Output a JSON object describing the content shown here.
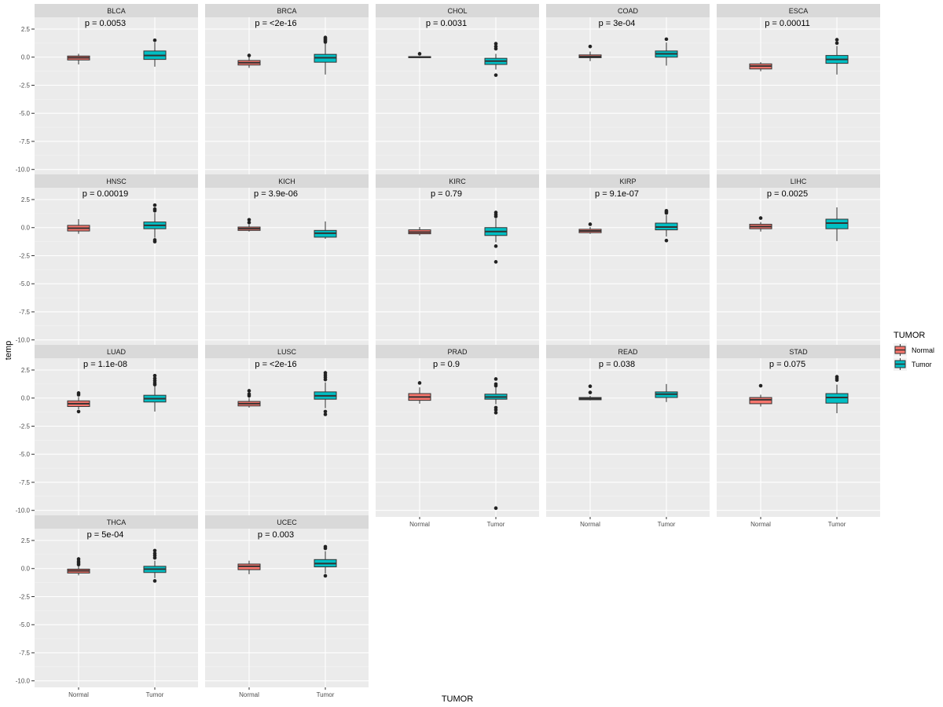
{
  "chart_data": {
    "type": "boxplot",
    "facet_layout": {
      "columns": 5,
      "rows": 4
    },
    "xlabel": "TUMOR",
    "ylabel": "temp",
    "ylim": [
      -10.3,
      3.2
    ],
    "yticks": [
      2.5,
      0.0,
      -2.5,
      -5.0,
      -7.5,
      -10.0
    ],
    "ytick_labels": [
      "2.5",
      "0.0",
      "-2.5",
      "-5.0",
      "-7.5",
      "-10.0"
    ],
    "categories": [
      "Normal",
      "Tumor"
    ],
    "legend": {
      "title": "TUMOR",
      "entries": [
        {
          "label": "Normal",
          "color": "#F8766D"
        },
        {
          "label": "Tumor",
          "color": "#00BFC4"
        }
      ]
    },
    "panels": [
      {
        "name": "BLCA",
        "p": "p = 0.0053",
        "normal": {
          "q1": -0.25,
          "median": -0.05,
          "q3": 0.1,
          "lo": -0.65,
          "hi": 0.3,
          "outliers": []
        },
        "tumor": {
          "q1": -0.2,
          "median": 0.15,
          "q3": 0.55,
          "lo": -0.85,
          "hi": 1.3,
          "outliers": [
            1.5
          ]
        }
      },
      {
        "name": "BRCA",
        "p": "p = <2e-16",
        "normal": {
          "q1": -0.7,
          "median": -0.5,
          "q3": -0.3,
          "lo": -0.95,
          "hi": 0.0,
          "outliers": [
            0.15
          ]
        },
        "tumor": {
          "q1": -0.45,
          "median": -0.05,
          "q3": 0.25,
          "lo": -1.55,
          "hi": 1.2,
          "outliers": [
            1.35,
            1.45,
            1.55,
            1.65,
            1.75
          ]
        }
      },
      {
        "name": "CHOL",
        "p": "p = 0.0031",
        "normal": {
          "q1": -0.05,
          "median": 0.0,
          "q3": 0.05,
          "lo": -0.1,
          "hi": 0.1,
          "outliers": [
            0.3
          ]
        },
        "tumor": {
          "q1": -0.65,
          "median": -0.35,
          "q3": -0.1,
          "lo": -1.1,
          "hi": 0.3,
          "outliers": [
            0.75,
            0.95,
            1.2,
            -1.6
          ]
        }
      },
      {
        "name": "COAD",
        "p": "p = 3e-04",
        "normal": {
          "q1": -0.05,
          "median": 0.05,
          "q3": 0.2,
          "lo": -0.35,
          "hi": 0.5,
          "outliers": [
            0.95
          ]
        },
        "tumor": {
          "q1": 0.0,
          "median": 0.3,
          "q3": 0.55,
          "lo": -0.75,
          "hi": 1.3,
          "outliers": [
            1.6
          ]
        }
      },
      {
        "name": "ESCA",
        "p": "p = 0.00011",
        "normal": {
          "q1": -1.05,
          "median": -0.8,
          "q3": -0.6,
          "lo": -1.25,
          "hi": -0.45,
          "outliers": []
        },
        "tumor": {
          "q1": -0.55,
          "median": -0.2,
          "q3": 0.15,
          "lo": -1.55,
          "hi": 1.0,
          "outliers": [
            1.25,
            1.55
          ]
        }
      },
      {
        "name": "HNSC",
        "p": "p = 0.00019",
        "normal": {
          "q1": -0.3,
          "median": -0.05,
          "q3": 0.2,
          "lo": -0.55,
          "hi": 0.75,
          "outliers": []
        },
        "tumor": {
          "q1": -0.1,
          "median": 0.2,
          "q3": 0.5,
          "lo": -0.9,
          "hi": 1.3,
          "outliers": [
            1.5,
            1.65,
            2.0,
            -1.1,
            -1.25
          ]
        }
      },
      {
        "name": "KICH",
        "p": "p = 3.9e-06",
        "normal": {
          "q1": -0.25,
          "median": -0.1,
          "q3": 0.05,
          "lo": -0.35,
          "hi": 0.25,
          "outliers": [
            0.45,
            0.7
          ]
        },
        "tumor": {
          "q1": -0.85,
          "median": -0.5,
          "q3": -0.25,
          "lo": -1.0,
          "hi": 0.55,
          "outliers": []
        }
      },
      {
        "name": "KIRC",
        "p": "p = 0.79",
        "normal": {
          "q1": -0.55,
          "median": -0.4,
          "q3": -0.2,
          "lo": -0.7,
          "hi": 0.05,
          "outliers": []
        },
        "tumor": {
          "q1": -0.7,
          "median": -0.35,
          "q3": 0.0,
          "lo": -1.3,
          "hi": 0.8,
          "outliers": [
            1.0,
            1.15,
            1.35,
            -1.65,
            -3.05
          ]
        }
      },
      {
        "name": "KIRP",
        "p": "p = 9.1e-07",
        "normal": {
          "q1": -0.45,
          "median": -0.3,
          "q3": -0.15,
          "lo": -0.55,
          "hi": 0.05,
          "outliers": [
            0.3
          ]
        },
        "tumor": {
          "q1": -0.2,
          "median": 0.05,
          "q3": 0.4,
          "lo": -0.8,
          "hi": 1.1,
          "outliers": [
            1.3,
            1.4,
            1.5,
            -1.15
          ]
        }
      },
      {
        "name": "LIHC",
        "p": "p = 0.0025",
        "normal": {
          "q1": -0.1,
          "median": 0.1,
          "q3": 0.3,
          "lo": -0.35,
          "hi": 0.5,
          "outliers": [
            0.85
          ]
        },
        "tumor": {
          "q1": -0.1,
          "median": 0.4,
          "q3": 0.75,
          "lo": -1.2,
          "hi": 1.8,
          "outliers": []
        }
      },
      {
        "name": "LUAD",
        "p": "p = 1.1e-08",
        "normal": {
          "q1": -0.75,
          "median": -0.5,
          "q3": -0.25,
          "lo": -1.0,
          "hi": 0.1,
          "outliers": [
            0.3,
            0.45,
            -1.2
          ]
        },
        "tumor": {
          "q1": -0.35,
          "median": -0.05,
          "q3": 0.25,
          "lo": -1.2,
          "hi": 1.05,
          "outliers": [
            1.2,
            1.35,
            1.55,
            1.75,
            2.0
          ]
        }
      },
      {
        "name": "LUSC",
        "p": "p = <2e-16",
        "normal": {
          "q1": -0.7,
          "median": -0.5,
          "q3": -0.3,
          "lo": -0.85,
          "hi": 0.0,
          "outliers": [
            0.2,
            0.35,
            0.65
          ]
        },
        "tumor": {
          "q1": -0.1,
          "median": 0.2,
          "q3": 0.55,
          "lo": -0.9,
          "hi": 1.4,
          "outliers": [
            1.65,
            1.85,
            2.05,
            2.25,
            -1.2,
            -1.45
          ]
        }
      },
      {
        "name": "PRAD",
        "p": "p = 0.9",
        "normal": {
          "q1": -0.2,
          "median": 0.1,
          "q3": 0.4,
          "lo": -0.5,
          "hi": 0.95,
          "outliers": [
            1.35
          ]
        },
        "tumor": {
          "q1": -0.1,
          "median": 0.1,
          "q3": 0.35,
          "lo": -0.55,
          "hi": 0.95,
          "outliers": [
            1.1,
            1.25,
            1.7,
            -0.85,
            -1.05,
            -1.3,
            -9.8
          ]
        }
      },
      {
        "name": "READ",
        "p": "p = 0.038",
        "normal": {
          "q1": -0.15,
          "median": -0.05,
          "q3": 0.05,
          "lo": -0.2,
          "hi": 0.2,
          "outliers": [
            0.5,
            1.05
          ]
        },
        "tumor": {
          "q1": 0.05,
          "median": 0.35,
          "q3": 0.55,
          "lo": -0.35,
          "hi": 1.25,
          "outliers": []
        }
      },
      {
        "name": "STAD",
        "p": "p = 0.075",
        "normal": {
          "q1": -0.5,
          "median": -0.15,
          "q3": 0.05,
          "lo": -0.75,
          "hi": 0.3,
          "outliers": [
            1.1
          ]
        },
        "tumor": {
          "q1": -0.45,
          "median": 0.05,
          "q3": 0.4,
          "lo": -1.35,
          "hi": 1.2,
          "outliers": [
            1.6,
            1.75,
            1.9
          ]
        }
      },
      {
        "name": "THCA",
        "p": "p = 5e-04",
        "normal": {
          "q1": -0.4,
          "median": -0.2,
          "q3": -0.05,
          "lo": -0.6,
          "hi": 0.2,
          "outliers": [
            0.35,
            0.5,
            0.65,
            0.85
          ]
        },
        "tumor": {
          "q1": -0.35,
          "median": -0.05,
          "q3": 0.2,
          "lo": -0.85,
          "hi": 0.7,
          "outliers": [
            0.95,
            1.15,
            1.35,
            1.6,
            -1.1
          ]
        }
      },
      {
        "name": "UCEC",
        "p": "p = 0.003",
        "normal": {
          "q1": -0.1,
          "median": 0.2,
          "q3": 0.4,
          "lo": -0.5,
          "hi": 0.7,
          "outliers": []
        },
        "tumor": {
          "q1": 0.15,
          "median": 0.45,
          "q3": 0.8,
          "lo": -0.45,
          "hi": 1.55,
          "outliers": [
            1.8,
            1.95,
            -0.65
          ]
        }
      }
    ]
  }
}
